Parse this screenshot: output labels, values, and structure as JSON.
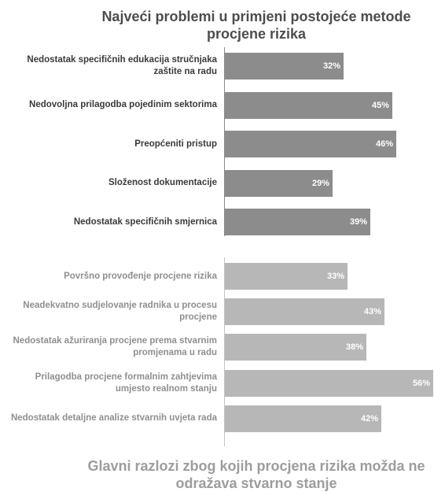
{
  "chart_data": [
    {
      "type": "bar",
      "orientation": "horizontal",
      "title": "Najveći problemi u primjeni postojeće metode procjene rizika",
      "categories": [
        "Nedostatak specifičnih edukacija stručnjaka zaštite na radu",
        "Nedovoljna prilagodba pojedinim sektorima",
        "Preopćeniti pristup",
        "Složenost dokumentacije",
        "Nedostatak specifičnih smjernica"
      ],
      "values": [
        32,
        45,
        46,
        29,
        39
      ],
      "value_labels": [
        "32%",
        "45%",
        "46%",
        "29%",
        "39%"
      ],
      "unit": "%",
      "xlim": [
        0,
        56
      ],
      "bar_color": "#8c8c8c",
      "text_color": "#3a3a3a",
      "grid": false
    },
    {
      "type": "bar",
      "orientation": "horizontal",
      "title": "Glavni razlozi zbog kojih procjena rizika možda ne odražava stvarno stanje",
      "title_position": "bottom",
      "categories": [
        "Površno provođenje procjene rizika",
        "Neadekvatno sudjelovanje radnika u procesu procjene",
        "Nedostatak ažuriranja procjene prema stvarnim promjenama u radu",
        "Prilagodba procjene formalnim zahtjevima umjesto realnom stanju",
        "Nedostatak detaljne analize stvarnih uvjeta rada"
      ],
      "values": [
        33,
        43,
        38,
        56,
        42
      ],
      "value_labels": [
        "33%",
        "43%",
        "38%",
        "56%",
        "42%"
      ],
      "unit": "%",
      "xlim": [
        0,
        56
      ],
      "bar_color": "#b7b7b7",
      "text_color": "#8f8f8f",
      "grid": false
    }
  ]
}
